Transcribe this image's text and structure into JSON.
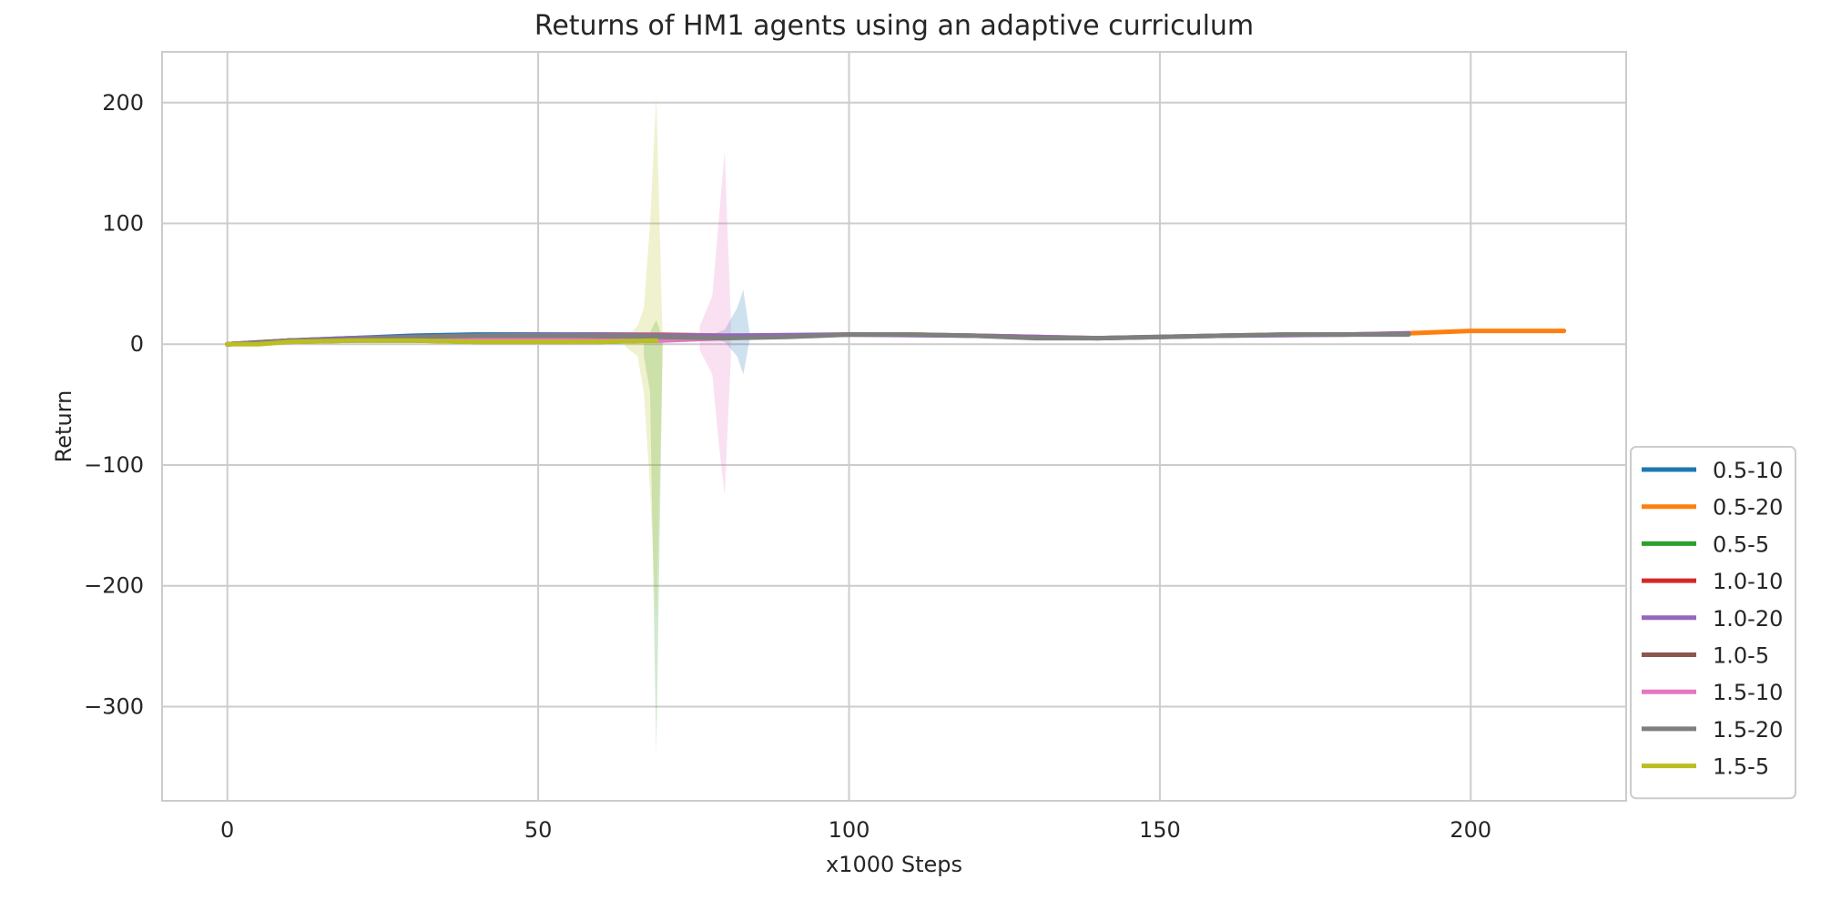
{
  "chart_data": {
    "type": "line",
    "title": "Returns of HM1 agents using an adaptive curriculum",
    "xlabel": "x1000 Steps",
    "ylabel": "Return",
    "xlim": [
      -10.5,
      225
    ],
    "ylim": [
      -378,
      242
    ],
    "xticks": [
      0,
      50,
      100,
      150,
      200
    ],
    "yticks": [
      -300,
      -200,
      -100,
      0,
      100,
      200
    ],
    "xtick_labels": [
      "0",
      "50",
      "100",
      "150",
      "200"
    ],
    "ytick_labels": [
      "−300",
      "−200",
      "−100",
      "0",
      "100",
      "200"
    ],
    "grid": true,
    "legend_position": "lower-right outside",
    "series": [
      {
        "name": "0.5-10",
        "color": "#1f77b4",
        "x": [
          0,
          5,
          10,
          20,
          30,
          40,
          50,
          60,
          70,
          75,
          80,
          83
        ],
        "y": [
          0,
          1,
          3,
          5,
          7,
          8,
          8,
          8,
          7,
          5,
          6,
          6
        ],
        "band": {
          "x": [
            78,
            80,
            82,
            83,
            84
          ],
          "upper": [
            8,
            12,
            30,
            45,
            10
          ],
          "lower": [
            4,
            2,
            -10,
            -25,
            3
          ]
        }
      },
      {
        "name": "0.5-20",
        "color": "#ff7f0e",
        "x": [
          0,
          5,
          10,
          20,
          30,
          40,
          50,
          60,
          70,
          80,
          90,
          100,
          110,
          120,
          130,
          140,
          150,
          160,
          170,
          180,
          190,
          200,
          210,
          215
        ],
        "y": [
          0,
          1,
          3,
          4,
          5,
          6,
          7,
          8,
          8,
          7,
          7,
          8,
          8,
          7,
          6,
          5,
          6,
          7,
          8,
          8,
          9,
          11,
          11,
          11
        ]
      },
      {
        "name": "0.5-5",
        "color": "#2ca02c",
        "x": [
          0,
          5,
          10,
          20,
          30,
          40,
          50,
          60,
          69
        ],
        "y": [
          0,
          1,
          2,
          3,
          3,
          2,
          2,
          2,
          3
        ],
        "band": {
          "x": [
            67,
            68,
            69,
            70
          ],
          "upper": [
            6,
            10,
            20,
            5
          ],
          "lower": [
            -10,
            -40,
            -340,
            -5
          ]
        }
      },
      {
        "name": "1.0-10",
        "color": "#d62728",
        "x": [
          0,
          5,
          10,
          20,
          30,
          40,
          50,
          60,
          69
        ],
        "y": [
          0,
          1,
          3,
          4,
          5,
          6,
          6,
          6,
          5
        ]
      },
      {
        "name": "1.0-20",
        "color": "#9467bd",
        "x": [
          0,
          10,
          20,
          40,
          60,
          80,
          100,
          120,
          140,
          160,
          180,
          190
        ],
        "y": [
          0,
          3,
          5,
          7,
          8,
          7,
          8,
          7,
          5,
          7,
          8,
          9
        ]
      },
      {
        "name": "1.0-5",
        "color": "#8c564b",
        "x": [
          0,
          10,
          20,
          30,
          40,
          50,
          60,
          69
        ],
        "y": [
          0,
          3,
          4,
          5,
          6,
          6,
          6,
          5
        ]
      },
      {
        "name": "1.5-10",
        "color": "#e377c2",
        "x": [
          0,
          10,
          20,
          30,
          40,
          50,
          60,
          70,
          75,
          80
        ],
        "y": [
          0,
          2,
          3,
          4,
          4,
          4,
          3,
          3,
          4,
          5
        ],
        "band": {
          "x": [
            76,
            78,
            79,
            80,
            81
          ],
          "upper": [
            15,
            40,
            100,
            160,
            20
          ],
          "lower": [
            -5,
            -25,
            -80,
            -125,
            -10
          ]
        }
      },
      {
        "name": "1.5-20",
        "color": "#7f7f7f",
        "x": [
          0,
          5,
          10,
          20,
          30,
          40,
          50,
          60,
          70,
          80,
          90,
          100,
          110,
          120,
          130,
          140,
          150,
          160,
          170,
          180,
          190
        ],
        "y": [
          0,
          1,
          3,
          4,
          6,
          7,
          7,
          7,
          6,
          5,
          6,
          8,
          8,
          7,
          5,
          5,
          6,
          7,
          8,
          8,
          8
        ]
      },
      {
        "name": "1.5-5",
        "color": "#bcbd22",
        "x": [
          0,
          5,
          10,
          20,
          30,
          40,
          50,
          60,
          69
        ],
        "y": [
          0,
          0,
          2,
          3,
          3,
          2,
          2,
          2,
          3
        ],
        "band": {
          "x": [
            64,
            66,
            67,
            68,
            69,
            70
          ],
          "upper": [
            5,
            15,
            30,
            100,
            205,
            5
          ],
          "lower": [
            -2,
            -10,
            -40,
            -120,
            -230,
            -5
          ]
        }
      }
    ]
  }
}
